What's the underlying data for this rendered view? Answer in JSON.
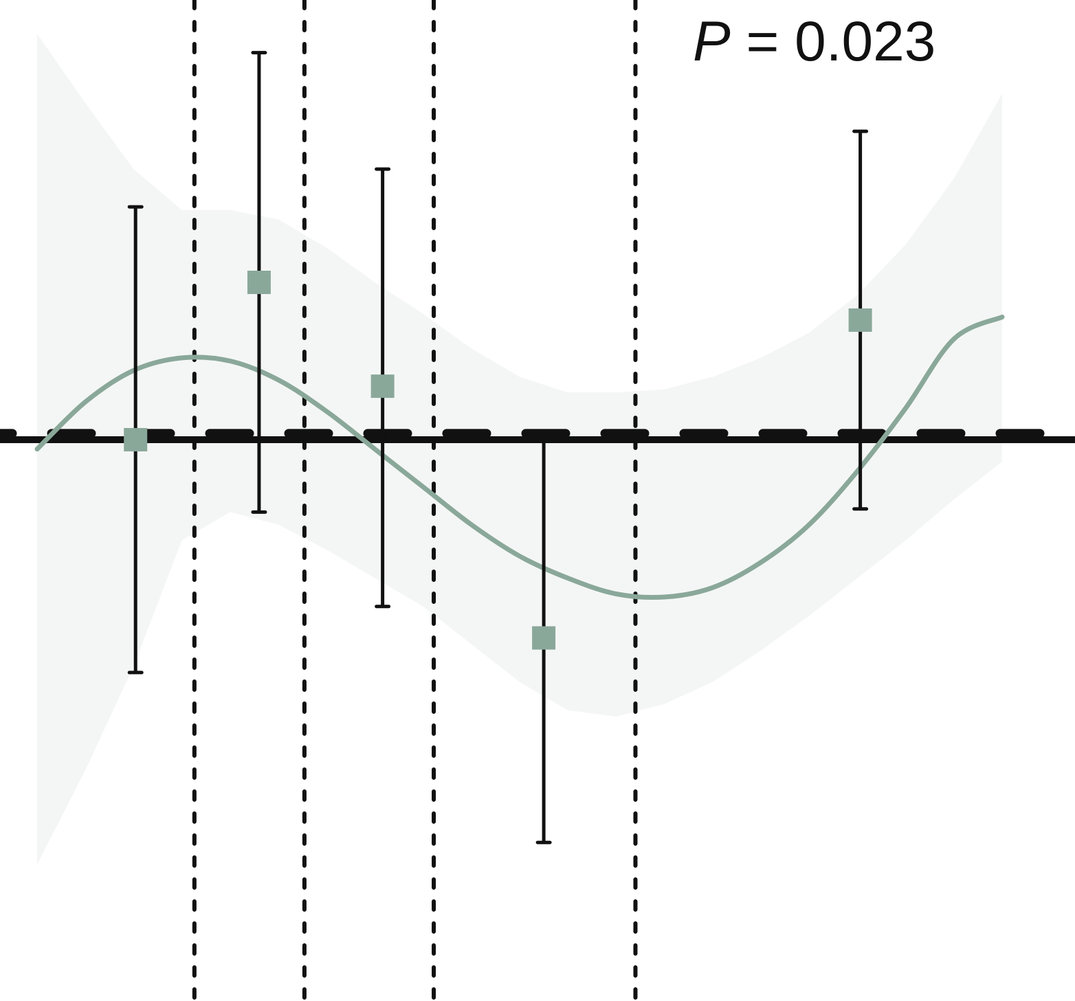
{
  "chart_data": {
    "type": "scatter",
    "title": "",
    "xlabel": "",
    "ylabel": "",
    "x_range": [
      0.0,
      1.0
    ],
    "y_range": [
      -1.8,
      1.3
    ],
    "annotation": {
      "italic": "P",
      "rest": " = 0.023"
    },
    "reference_lines": {
      "horizontal_solid_y": 0.0,
      "horizontal_dashed_y": 0.02,
      "vertical_dotted_x": [
        0.163,
        0.277,
        0.411,
        0.62
      ]
    },
    "points": [
      {
        "x": 0.102,
        "y": 0.0,
        "lower": -0.74,
        "upper": 0.74
      },
      {
        "x": 0.23,
        "y": 0.5,
        "lower": -0.23,
        "upper": 1.23
      },
      {
        "x": 0.358,
        "y": 0.17,
        "lower": -0.53,
        "upper": 0.86
      },
      {
        "x": 0.525,
        "y": -0.63,
        "lower": -1.28,
        "upper": 0.0
      },
      {
        "x": 0.853,
        "y": 0.38,
        "lower": -0.22,
        "upper": 0.98
      }
    ],
    "fit": {
      "x": [
        0.0,
        0.05,
        0.1,
        0.15,
        0.2,
        0.25,
        0.3,
        0.35,
        0.4,
        0.45,
        0.5,
        0.55,
        0.6,
        0.65,
        0.7,
        0.75,
        0.8,
        0.85,
        0.9,
        0.95,
        1.0
      ],
      "y": [
        -0.03,
        0.12,
        0.22,
        0.26,
        0.25,
        0.19,
        0.09,
        -0.03,
        -0.15,
        -0.27,
        -0.37,
        -0.44,
        -0.49,
        -0.5,
        -0.47,
        -0.39,
        -0.27,
        -0.1,
        0.1,
        0.32,
        0.39
      ]
    },
    "band": {
      "x": [
        0.0,
        0.05,
        0.1,
        0.15,
        0.2,
        0.25,
        0.3,
        0.35,
        0.4,
        0.45,
        0.5,
        0.55,
        0.6,
        0.65,
        0.7,
        0.75,
        0.8,
        0.85,
        0.9,
        0.95,
        1.0
      ],
      "upper": [
        1.29,
        1.07,
        0.86,
        0.73,
        0.73,
        0.7,
        0.61,
        0.5,
        0.4,
        0.29,
        0.2,
        0.15,
        0.15,
        0.16,
        0.2,
        0.26,
        0.34,
        0.46,
        0.62,
        0.83,
        1.1
      ],
      "lower": [
        -1.35,
        -1.05,
        -0.72,
        -0.32,
        -0.23,
        -0.27,
        -0.35,
        -0.44,
        -0.53,
        -0.65,
        -0.77,
        -0.86,
        -0.88,
        -0.84,
        -0.77,
        -0.67,
        -0.56,
        -0.44,
        -0.32,
        -0.19,
        -0.07
      ]
    },
    "grid": false,
    "legend": "none",
    "colors": {
      "marker": "#8aa89a",
      "fit": "#8aa89a",
      "band": "#f4f6f5",
      "lines": "#111111",
      "errorbars": "#111111"
    }
  }
}
